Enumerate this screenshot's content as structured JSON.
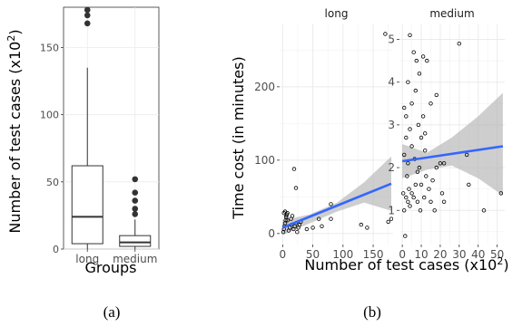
{
  "chart_data": [
    {
      "type": "box",
      "panel_label": "(a)",
      "xlabel": "Groups",
      "ylabel": "Number of test cases (x10²)",
      "ylabel_parts": {
        "main": "Number of test cases (x10",
        "sup": "2",
        "close": ")"
      },
      "ylim": [
        0,
        180
      ],
      "yticks": [
        0,
        50,
        100,
        150
      ],
      "categories": [
        "long",
        "medium"
      ],
      "boxes": [
        {
          "group": "long",
          "q1": 4,
          "median": 24,
          "q3": 62,
          "whisker_low": 0,
          "whisker_high": 135,
          "outliers": [
            168,
            174,
            178
          ]
        },
        {
          "group": "medium",
          "q1": 2,
          "median": 5,
          "q3": 10,
          "whisker_low": 0,
          "whisker_high": 22,
          "outliers": [
            26,
            30,
            36,
            42,
            52
          ]
        }
      ],
      "grid": true,
      "colors": {
        "grid": "#ebebeb",
        "box": "#333333",
        "point": "#333333"
      }
    },
    {
      "type": "scatter",
      "panel_label": "(b)",
      "xlabel": "Number of test cases (x10²)",
      "xlabel_parts": {
        "main": "Number of test cases (x10",
        "sup": "2",
        "close": ")"
      },
      "ylabel": "Time cost (in minutes)",
      "facets": [
        {
          "name": "long",
          "xlim": [
            -5,
            183
          ],
          "ylim": [
            -15,
            285
          ],
          "xticks": [
            0,
            50,
            100,
            150
          ],
          "yticks": [
            0,
            100,
            200
          ],
          "points": [
            [
              1,
              2
            ],
            [
              2,
              6
            ],
            [
              3,
              10
            ],
            [
              4,
              14
            ],
            [
              5,
              18
            ],
            [
              6,
              22
            ],
            [
              7,
              26
            ],
            [
              8,
              28
            ],
            [
              10,
              4
            ],
            [
              12,
              8
            ],
            [
              15,
              12
            ],
            [
              18,
              6
            ],
            [
              20,
              10
            ],
            [
              22,
              14
            ],
            [
              24,
              2
            ],
            [
              26,
              8
            ],
            [
              28,
              12
            ],
            [
              30,
              16
            ],
            [
              2,
              28
            ],
            [
              4,
              30
            ],
            [
              6,
              24
            ],
            [
              8,
              18
            ],
            [
              14,
              20
            ],
            [
              16,
              24
            ],
            [
              19,
              88
            ],
            [
              22,
              62
            ],
            [
              40,
              6
            ],
            [
              50,
              8
            ],
            [
              60,
              20
            ],
            [
              65,
              10
            ],
            [
              80,
              40
            ],
            [
              80,
              20
            ],
            [
              130,
              12
            ],
            [
              140,
              8
            ],
            [
              170,
              272
            ],
            [
              175,
              16
            ],
            [
              180,
              20
            ]
          ],
          "fit": {
            "x": [
              0,
              180
            ],
            "y": [
              8,
              68
            ]
          },
          "ci": {
            "x": [
              0,
              45,
              90,
              135,
              180
            ],
            "upper": [
              18,
              26,
              42,
              70,
              105
            ],
            "lower": [
              -2,
              14,
              30,
              42,
              31
            ]
          }
        },
        {
          "name": "medium",
          "xlim": [
            -1.5,
            54
          ],
          "ylim": [
            0.2,
            5.35
          ],
          "xticks": [
            0,
            10,
            20,
            30,
            40,
            50
          ],
          "yticks": [
            1,
            2,
            3,
            4,
            5
          ],
          "points": [
            [
              0.5,
              1.4
            ],
            [
              1,
              1.0
            ],
            [
              1,
              2.3
            ],
            [
              1,
              3.4
            ],
            [
              1.5,
              0.4
            ],
            [
              2,
              1.3
            ],
            [
              2,
              2.7
            ],
            [
              2,
              3.2
            ],
            [
              2.5,
              1.8
            ],
            [
              3,
              1.2
            ],
            [
              3,
              2.1
            ],
            [
              3,
              4.0
            ],
            [
              3.5,
              1.5
            ],
            [
              4,
              2.9
            ],
            [
              4,
              1.1
            ],
            [
              4,
              5.1
            ],
            [
              5,
              2.5
            ],
            [
              5,
              1.4
            ],
            [
              5,
              3.5
            ],
            [
              6,
              1.3
            ],
            [
              6,
              4.7
            ],
            [
              6.5,
              2.2
            ],
            [
              7,
              3.8
            ],
            [
              7,
              1.6
            ],
            [
              7.5,
              4.5
            ],
            [
              8,
              1.2
            ],
            [
              8,
              1.9
            ],
            [
              8.5,
              3.0
            ],
            [
              9,
              2.0
            ],
            [
              9,
              4.2
            ],
            [
              9.5,
              1.0
            ],
            [
              10,
              1.6
            ],
            [
              10,
              2.7
            ],
            [
              11,
              3.2
            ],
            [
              11,
              4.6
            ],
            [
              11.5,
              1.3
            ],
            [
              12,
              2.4
            ],
            [
              12,
              2.8
            ],
            [
              12.5,
              1.8
            ],
            [
              13,
              4.5
            ],
            [
              14,
              1.5
            ],
            [
              15,
              3.5
            ],
            [
              15,
              1.2
            ],
            [
              16,
              1.7
            ],
            [
              17,
              1.0
            ],
            [
              18,
              2.0
            ],
            [
              18,
              3.7
            ],
            [
              20,
              2.1
            ],
            [
              21,
              1.4
            ],
            [
              22,
              2.1
            ],
            [
              22,
              1.2
            ],
            [
              30,
              4.9
            ],
            [
              34,
              2.3
            ],
            [
              35,
              1.6
            ],
            [
              43,
              1.0
            ],
            [
              52,
              1.4
            ]
          ],
          "fit": {
            "x": [
              0,
              53
            ],
            "y": [
              2.15,
              2.5
            ]
          },
          "ci": {
            "x": [
              0,
              13,
              26,
              40,
              53
            ],
            "upper": [
              2.55,
              2.35,
              2.7,
              3.2,
              3.75
            ],
            "lower": [
              1.75,
              1.95,
              2.05,
              1.75,
              1.35
            ]
          }
        }
      ],
      "grid": true,
      "colors": {
        "panel_bg": "#ffffff",
        "grid": "#ebebeb",
        "strip_bg": "#ffffff",
        "fit": "#3366ff",
        "ci": "#b3b3b3",
        "point": "#000000"
      }
    }
  ]
}
